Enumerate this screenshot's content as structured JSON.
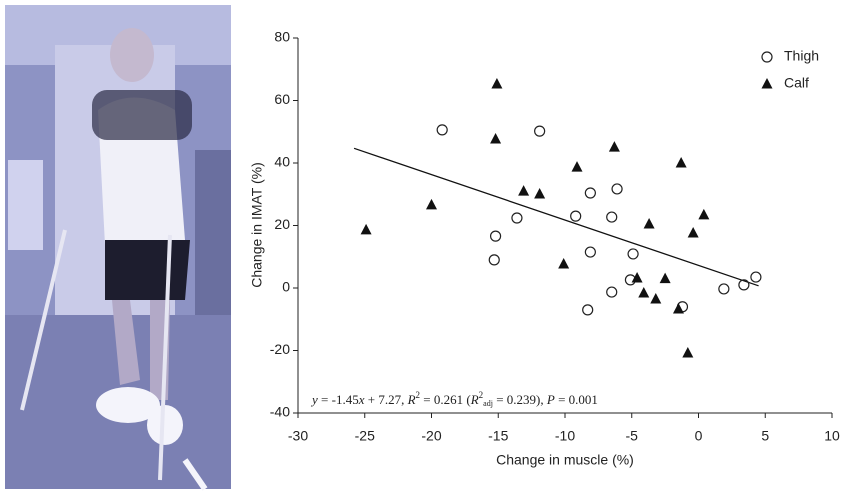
{
  "chart_data": {
    "type": "scatter",
    "x_label": "Change in muscle (%)",
    "y_label": "Change in IMAT (%)",
    "xlim": [
      -30,
      10
    ],
    "ylim": [
      -40,
      80
    ],
    "xticks": [
      -30,
      -25,
      -20,
      -15,
      -10,
      -5,
      0,
      5,
      10
    ],
    "yticks": [
      -40,
      -20,
      0,
      20,
      40,
      60,
      80
    ],
    "legend": "top-right",
    "series": [
      {
        "name": "Thigh",
        "marker": "circle",
        "color": "#222222",
        "x": [
          -19.2,
          -11.9,
          -15.2,
          -15.3,
          -13.6,
          -8.1,
          -6.1,
          -9.2,
          -6.5,
          -8.1,
          -4.9,
          -5.1,
          -6.5,
          -8.3,
          -1.2,
          1.9,
          3.4,
          4.3
        ],
        "values": [
          50.6,
          50.2,
          16.6,
          9,
          22.4,
          30.4,
          31.7,
          23,
          22.7,
          11.5,
          10.9,
          2.6,
          -1.3,
          -7,
          -6,
          -0.3,
          1,
          3.5
        ]
      },
      {
        "name": "Calf",
        "marker": "triangle",
        "color": "#111111",
        "x": [
          -24.9,
          -20,
          -15.1,
          -15.2,
          -13.1,
          -11.9,
          -10.1,
          -9.1,
          -6.3,
          -3.7,
          -4.6,
          -3.2,
          -2.5,
          -1.5,
          -1.3,
          0.4,
          -0.4,
          -0.8,
          -4.1
        ],
        "values": [
          18.6,
          26.6,
          65.3,
          47.7,
          31,
          30.1,
          7.7,
          38.7,
          45.1,
          20.5,
          3.2,
          -3.5,
          3,
          -6.7,
          40,
          23.4,
          17.6,
          -20.8,
          -1.6
        ]
      }
    ],
    "fit_line": {
      "x": [
        -25.8,
        4.5
      ],
      "values": [
        44.7,
        0.7
      ],
      "color": "#111111"
    },
    "annotation": [
      "y",
      " = -1.45",
      "x",
      " + 7.27, ",
      "R",
      "2",
      " = 0.261 (",
      "R",
      "2",
      "adj",
      " = 0.239), ",
      "P",
      " = 0.001"
    ]
  }
}
